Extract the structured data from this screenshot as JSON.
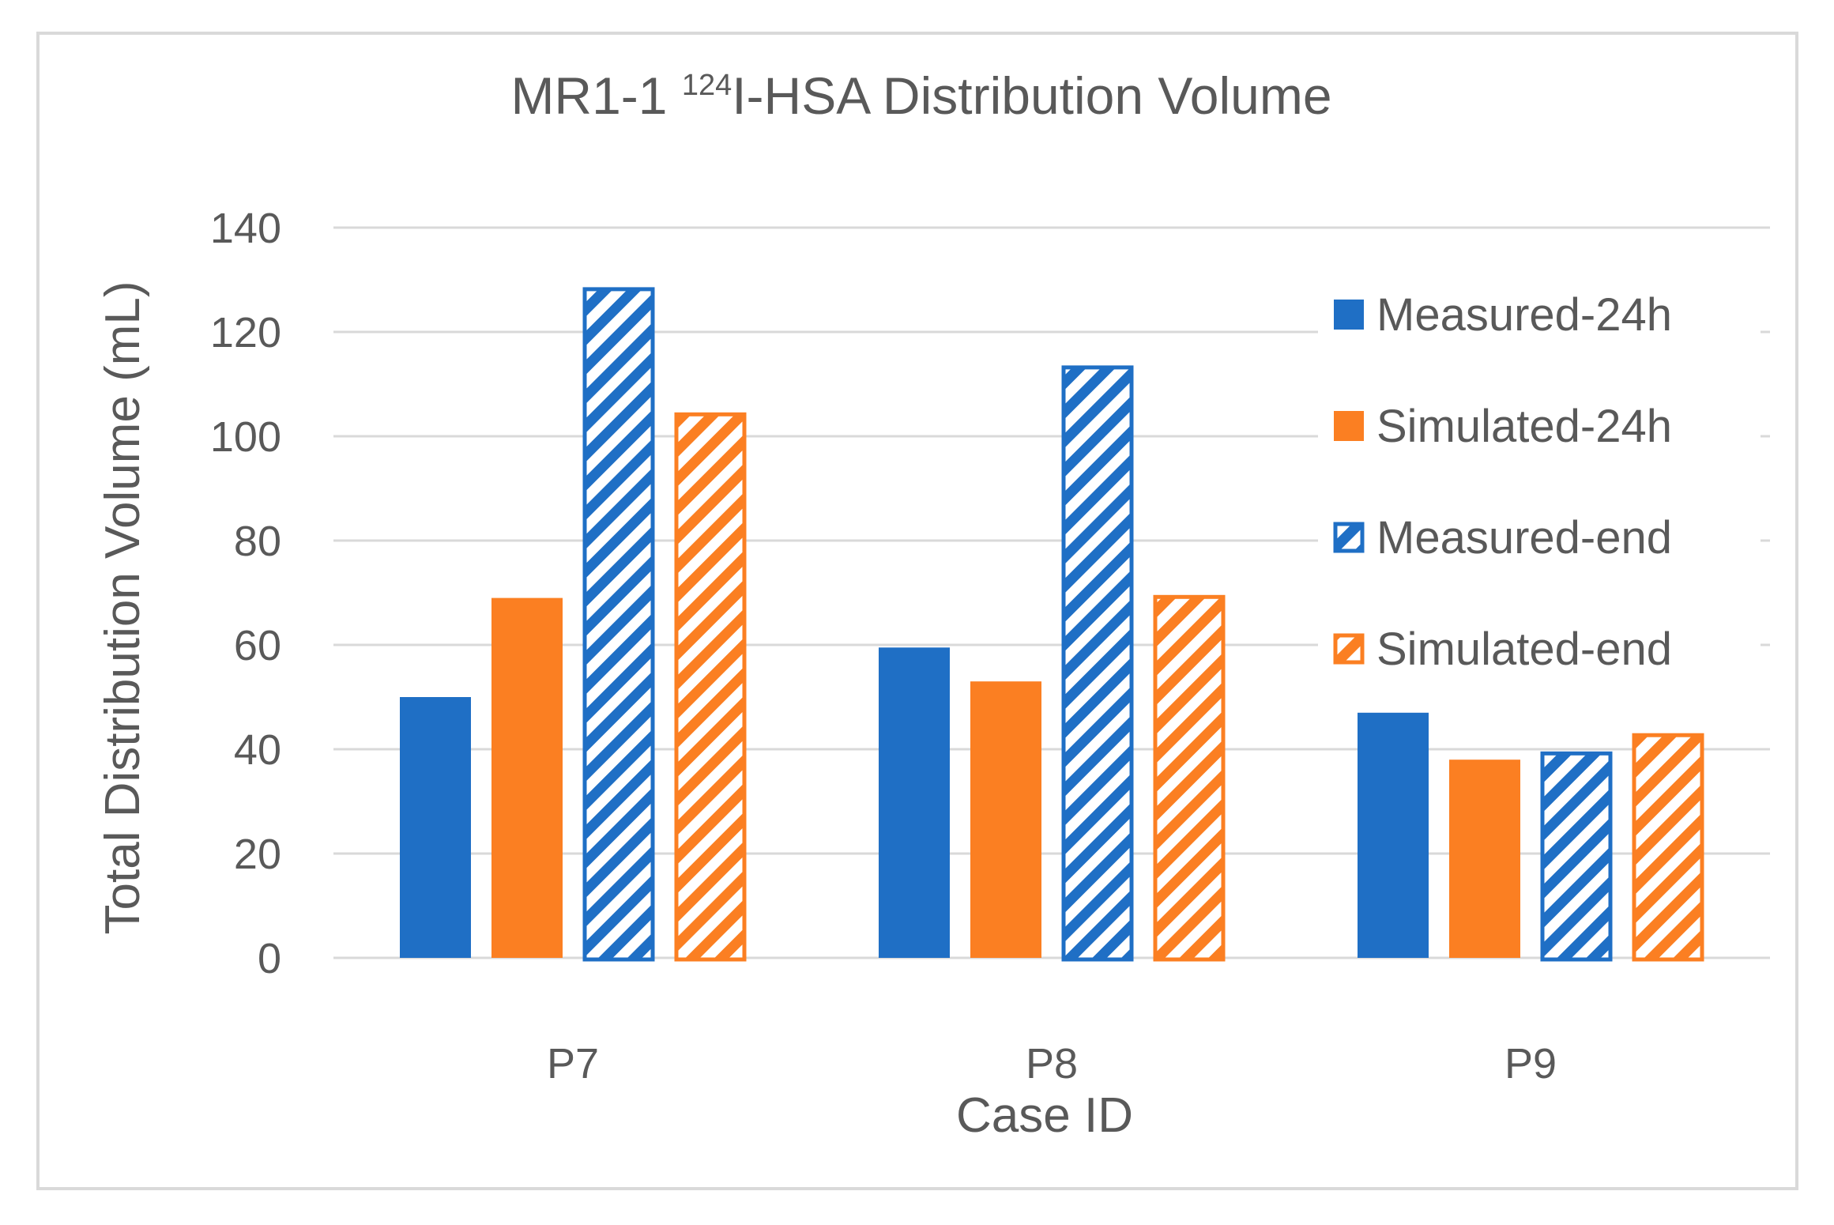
{
  "chart_data": {
    "type": "bar",
    "title_main": "MR1-1 ",
    "title_sup": "124",
    "title_rest": "I-HSA Distribution Volume",
    "title": "MR1-1 124I-HSA Distribution Volume",
    "xlabel": "Case ID",
    "ylabel": "Total Distribution Volume (mL)",
    "categories": [
      "P7",
      "P8",
      "P9"
    ],
    "ylim": [
      0,
      140
    ],
    "yticks": [
      0,
      20,
      40,
      60,
      80,
      100,
      120,
      140
    ],
    "grid": true,
    "legend_position": "right",
    "series": [
      {
        "name": "Measured-24h",
        "values": [
          50,
          59.5,
          47
        ],
        "color": "#1f6fc5",
        "style": "solid"
      },
      {
        "name": "Simulated-24h",
        "values": [
          69,
          53,
          38
        ],
        "color": "#fb7f22",
        "style": "solid"
      },
      {
        "name": "Measured-end",
        "values": [
          128.5,
          113.5,
          39.5
        ],
        "color": "#1f6fc5",
        "style": "hatched"
      },
      {
        "name": "Simulated-end",
        "values": [
          104.5,
          69.5,
          43
        ],
        "color": "#fb7f22",
        "style": "hatched"
      }
    ]
  }
}
